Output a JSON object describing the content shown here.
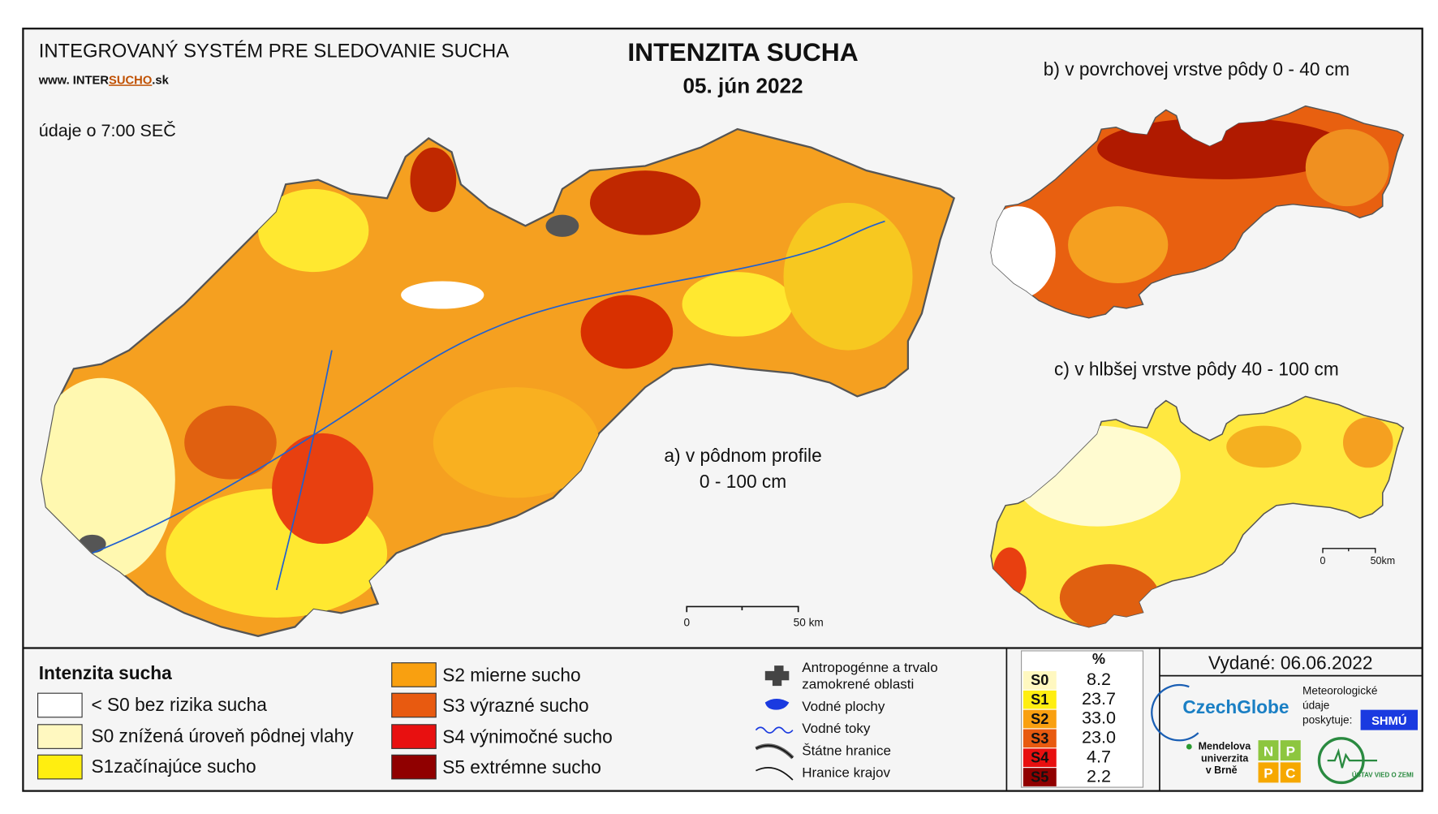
{
  "header": {
    "title": "INTEGROVANÝ SYSTÉM PRE SLEDOVANIE SUCHA",
    "url_prefix": "www. INTER",
    "url_highlight": "SUCHO",
    "url_suffix": ".sk",
    "time_note": "údaje o 7:00 SEČ"
  },
  "map": {
    "title": "INTENZITA SUCHA",
    "date": "05. jún 2022",
    "main_label": [
      "a) v pôdnom profile",
      "0 - 100 cm"
    ],
    "inset_b": "b) v povrchovej vrstve pôdy 0 - 40 cm",
    "inset_c": "c) v hlbšej vrstve pôdy 40 - 100 cm",
    "scale_main": [
      "0",
      "50 km"
    ],
    "scale_inset": [
      "0",
      "50km"
    ]
  },
  "legend": {
    "title": "Intenzita sucha",
    "items": [
      "< S0 bez rizika sucha",
      "S0 znížená úroveň pôdnej vlahy",
      "S1začínajúce sucho",
      "S2 mierne sucho",
      "S3 výrazné sucho",
      "S4 výnimočné sucho",
      "S5 extrémne sucho"
    ]
  },
  "symbols": [
    [
      "Antropogénne a trvalo",
      "zamokrené oblasti"
    ],
    [
      "Vodné plochy"
    ],
    [
      "Vodné toky"
    ],
    [
      "Štátne hranice"
    ],
    [
      "Hranice krajov"
    ]
  ],
  "table": {
    "header": "%",
    "rows": [
      [
        "S0",
        "8.2"
      ],
      [
        "S1",
        "23.7"
      ],
      [
        "S2",
        "33.0"
      ],
      [
        "S3",
        "23.0"
      ],
      [
        "S4",
        "4.7"
      ],
      [
        "S5",
        "2.2"
      ]
    ]
  },
  "issued": "Vydané: 06.06.2022",
  "logos": {
    "czechglobe": "CzechGlobe",
    "meteo": [
      "Meteorologické",
      "údaje",
      "poskytuje:"
    ],
    "shmu": "SHMÚ",
    "mendel": [
      "Mendelova",
      "univerzita",
      "v Brně"
    ],
    "nppc": [
      "N",
      "P",
      "P",
      "C"
    ],
    "uvz": "ÚSTAV VIED O ZEMI"
  }
}
